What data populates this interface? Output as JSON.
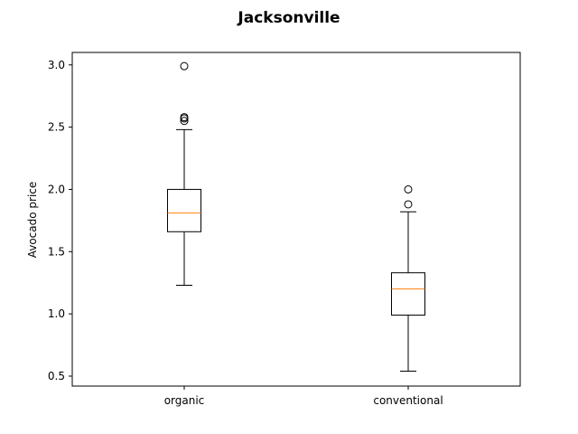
{
  "chart_data": {
    "type": "box",
    "title": "Jacksonville",
    "xlabel": "",
    "ylabel": "Avocado price",
    "ylim": [
      0.42,
      3.1
    ],
    "yticks": [
      "0.5",
      "1.0",
      "1.5",
      "2.0",
      "2.5",
      "3.0"
    ],
    "grid": false,
    "categories": [
      "organic",
      "conventional"
    ],
    "boxes": [
      {
        "category": "organic",
        "whisker_low": 1.23,
        "q1": 1.66,
        "median": 1.81,
        "q3": 2.0,
        "whisker_high": 2.48,
        "outliers": [
          2.55,
          2.57,
          2.58,
          2.99
        ]
      },
      {
        "category": "conventional",
        "whisker_low": 0.54,
        "q1": 0.99,
        "median": 1.2,
        "q3": 1.33,
        "whisker_high": 1.82,
        "outliers": [
          1.88,
          2.0
        ]
      }
    ],
    "colors": {
      "box": "#000000",
      "median": "#ff7f0e"
    }
  }
}
